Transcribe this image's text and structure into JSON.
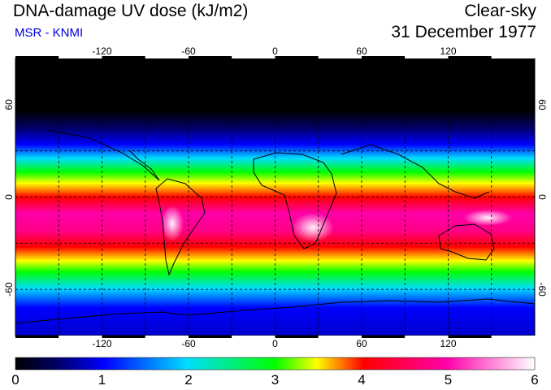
{
  "header": {
    "title": "DNA-damage UV dose (kJ/m2)",
    "source": "MSR - KNMI",
    "condition": "Clear-sky",
    "date": "31 December 1977"
  },
  "map": {
    "projection": "equirectangular",
    "lon_ticks": [
      "-120",
      "-60",
      "0",
      "60",
      "120"
    ],
    "lat_ticks": [
      "60",
      "0",
      "-60"
    ]
  },
  "colorbar": {
    "min": 0,
    "max": 6,
    "labels": [
      "0",
      "1",
      "2",
      "3",
      "4",
      "5",
      "6"
    ]
  },
  "colors": {
    "stops": [
      "#000000",
      "#000066",
      "#0000ff",
      "#00ddff",
      "#00ff00",
      "#ffff00",
      "#ff0000",
      "#ff00aa",
      "#ffffff"
    ]
  }
}
